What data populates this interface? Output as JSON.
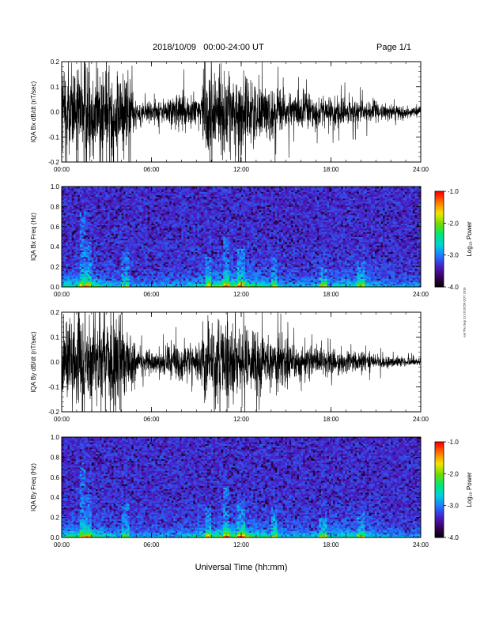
{
  "header": {
    "date_range": "2018/10/09   00:00-24:00 UT",
    "page": "Page 1/1"
  },
  "footer": {
    "xlabel": "Universal Time (hh:mm)",
    "stamp": "ext Thu Sep 12 16:06:59 CDT 2019"
  },
  "colors": {
    "trace": "#000000",
    "colormap": [
      "#000000",
      "#3a005a",
      "#4a1ec8",
      "#1e78ff",
      "#00d2dc",
      "#00e678",
      "#6edc00",
      "#f0e600",
      "#ff7800",
      "#ff0000"
    ]
  },
  "chart_data": [
    {
      "type": "line",
      "ylabel": "IQA Bx dB/dt (nT/sec)",
      "xlim": [
        0,
        24
      ],
      "ylim": [
        -0.2,
        0.2
      ],
      "x_ticks": [
        "00:00",
        "06:00",
        "12:00",
        "18:00",
        "24:00"
      ],
      "y_ticks": [
        "-0.2",
        "-0.1",
        "0.0",
        "0.1",
        "0.2"
      ],
      "envelope": {
        "hours": [
          0,
          1,
          1.5,
          2,
          3,
          4,
          4.5,
          5,
          6,
          7,
          8,
          9,
          9.5,
          10,
          11,
          12,
          13,
          14,
          15,
          16,
          17,
          18,
          19,
          20,
          21,
          22,
          23,
          24
        ],
        "amplitude": [
          0.22,
          0.2,
          0.22,
          0.2,
          0.2,
          0.2,
          0.15,
          0.06,
          0.05,
          0.06,
          0.09,
          0.07,
          0.14,
          0.22,
          0.17,
          0.16,
          0.13,
          0.11,
          0.09,
          0.08,
          0.07,
          0.06,
          0.06,
          0.05,
          0.04,
          0.03,
          0.025,
          0.02
        ]
      }
    },
    {
      "type": "heatmap",
      "ylabel": "IQA Bx Freq (Hz)",
      "xlim": [
        0,
        24
      ],
      "ylim": [
        0,
        1
      ],
      "x_ticks": [
        "00:00",
        "06:00",
        "12:00",
        "18:00",
        "24:00"
      ],
      "y_ticks": [
        "0.0",
        "0.2",
        "0.4",
        "0.6",
        "0.8",
        "1.0"
      ],
      "colorbar": {
        "label": "Log₁₀ Power",
        "range": [
          -4,
          -1
        ],
        "ticks": [
          "-1.0",
          "-2.0",
          "-3.0",
          "-4.0"
        ]
      }
    },
    {
      "type": "line",
      "ylabel": "IQA By dB/dt (nT/sec)",
      "xlim": [
        0,
        24
      ],
      "ylim": [
        -0.2,
        0.2
      ],
      "x_ticks": [
        "00:00",
        "06:00",
        "12:00",
        "18:00",
        "24:00"
      ],
      "y_ticks": [
        "-0.2",
        "-0.1",
        "0.0",
        "0.1",
        "0.2"
      ],
      "envelope": {
        "hours": [
          0,
          1,
          1.5,
          2,
          3,
          4,
          4.5,
          5,
          6,
          7,
          8,
          9,
          9.5,
          10,
          11,
          12,
          13,
          14,
          15,
          16,
          17,
          18,
          19,
          20,
          21,
          22,
          23,
          24
        ],
        "amplitude": [
          0.2,
          0.2,
          0.22,
          0.2,
          0.2,
          0.2,
          0.14,
          0.06,
          0.05,
          0.06,
          0.08,
          0.06,
          0.12,
          0.17,
          0.17,
          0.16,
          0.13,
          0.11,
          0.1,
          0.08,
          0.06,
          0.05,
          0.05,
          0.04,
          0.035,
          0.025,
          0.02,
          0.015
        ]
      }
    },
    {
      "type": "heatmap",
      "ylabel": "IQA By Freq (Hz)",
      "xlim": [
        0,
        24
      ],
      "ylim": [
        0,
        1
      ],
      "x_ticks": [
        "00:00",
        "06:00",
        "12:00",
        "18:00",
        "24:00"
      ],
      "y_ticks": [
        "0.0",
        "0.2",
        "0.4",
        "0.6",
        "0.8",
        "1.0"
      ],
      "colorbar": {
        "label": "Log₁₀ Power",
        "range": [
          -4,
          -1
        ],
        "ticks": [
          "-1.0",
          "-2.0",
          "-3.0",
          "-4.0"
        ]
      }
    }
  ]
}
